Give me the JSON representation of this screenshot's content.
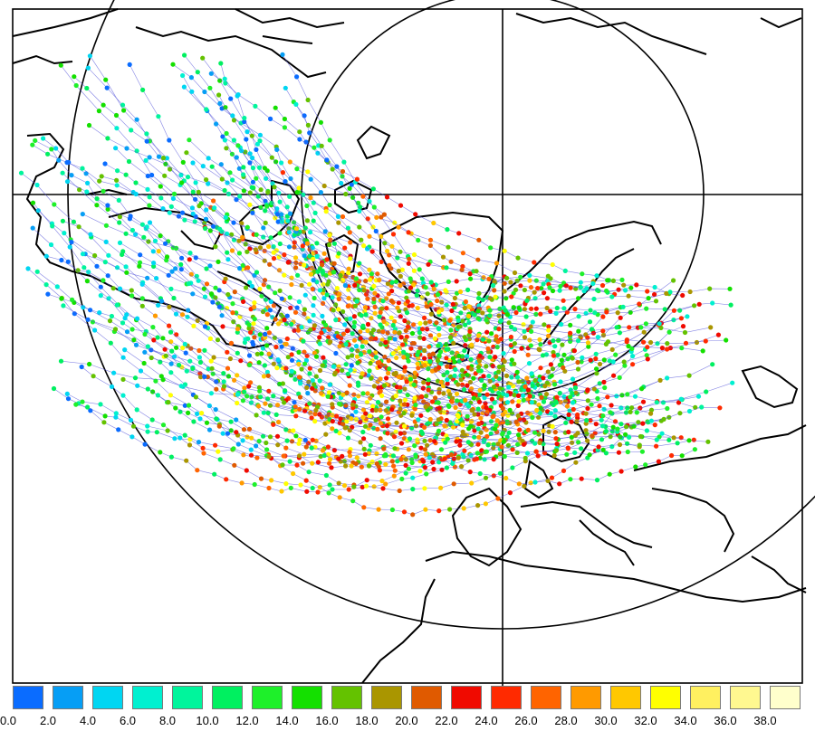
{
  "map": {
    "legend": {
      "colors": [
        "#0a6cff",
        "#069ef5",
        "#00d6f2",
        "#00f0d0",
        "#00f59c",
        "#00f060",
        "#1ef02a",
        "#14e000",
        "#64c200",
        "#aa9600",
        "#e05a00",
        "#f00a00",
        "#ff2a00",
        "#ff6400",
        "#ff9a00",
        "#ffc800",
        "#ffff00",
        "#fff060",
        "#fff890",
        "#ffffcc"
      ],
      "labels": [
        "0.0",
        "2.0",
        "4.0",
        "6.0",
        "8.0",
        "10.0",
        "12.0",
        "14.0",
        "16.0",
        "18.0",
        "20.0",
        "22.0",
        "24.0",
        "26.0",
        "28.0",
        "30.0",
        "32.0",
        "34.0",
        "36.0",
        "38.0"
      ]
    },
    "track_color": "#5050d8"
  }
}
